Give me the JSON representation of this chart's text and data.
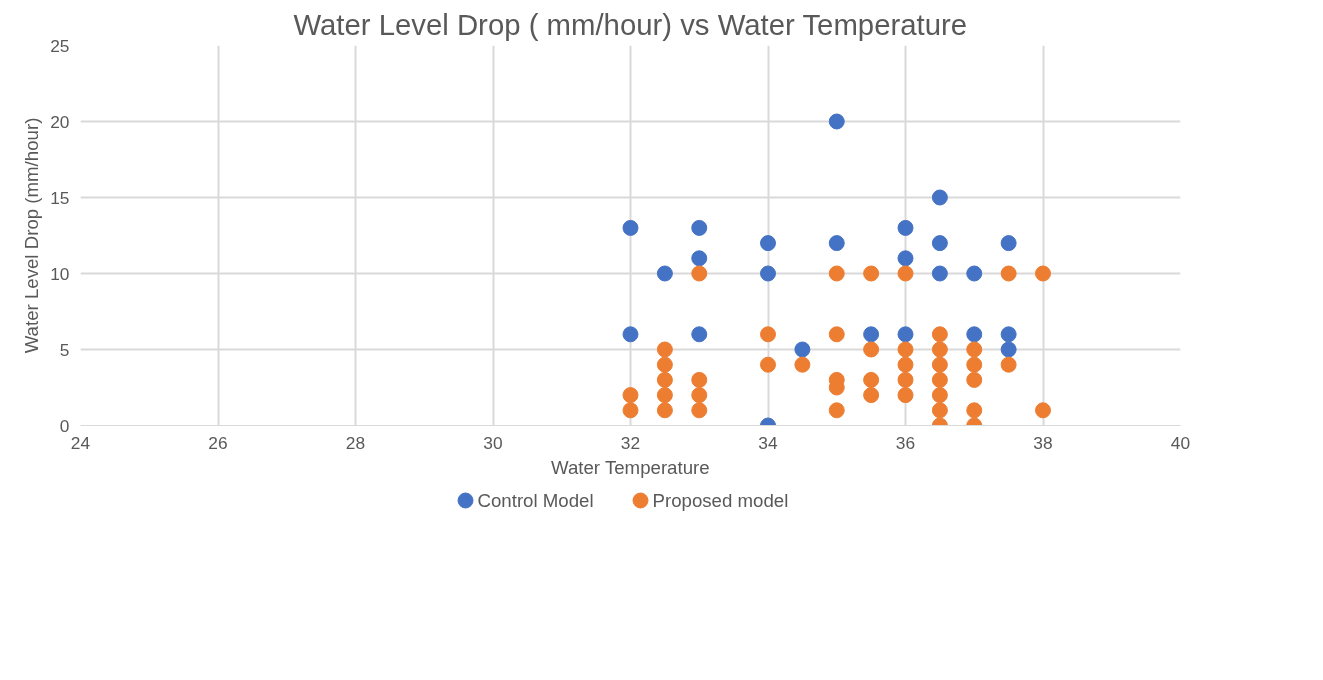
{
  "chart_data": {
    "type": "scatter",
    "title": "Water Level Drop ( mm/hour) vs Water Temperature",
    "xlabel": "Water Temperature",
    "ylabel": "Water Level Drop (mm/hour)",
    "xlim": [
      24,
      40
    ],
    "xticks": [
      24,
      26,
      28,
      30,
      32,
      34,
      36,
      38,
      40
    ],
    "ylim": [
      0,
      25
    ],
    "yticks": [
      0,
      5,
      10,
      15,
      20,
      25
    ],
    "grid": true,
    "legend": "bottom",
    "marker": "circle",
    "series": [
      {
        "name": "Control Model",
        "color": "#4472c4",
        "x": [
          32,
          32,
          32.5,
          33,
          33,
          33,
          34,
          34,
          34,
          34.5,
          35,
          35,
          35.5,
          36,
          36,
          36,
          36.5,
          36.5,
          36.5,
          37,
          37,
          37.5,
          37.5,
          37.5
        ],
        "values": [
          13,
          6,
          10,
          13,
          11,
          6,
          12,
          10,
          0,
          5,
          20,
          12,
          6,
          13,
          11,
          6,
          15,
          12,
          10,
          10,
          6,
          12,
          6,
          5
        ]
      },
      {
        "name": "Proposed model",
        "color": "#ed7d31",
        "x": [
          32,
          32,
          32.5,
          32.5,
          32.5,
          32.5,
          32.5,
          33,
          33,
          33,
          33,
          34,
          34,
          34.5,
          35,
          35,
          35,
          35,
          35,
          35.5,
          35.5,
          35.5,
          35.5,
          36,
          36,
          36,
          36,
          36,
          36.5,
          36.5,
          36.5,
          36.5,
          36.5,
          36.5,
          36.5,
          37,
          37,
          37,
          37,
          37,
          37.5,
          37.5,
          38,
          38
        ],
        "values": [
          2,
          1,
          5,
          4,
          3,
          2,
          1,
          10,
          3,
          2,
          1,
          6,
          4,
          4,
          10,
          6,
          3,
          2.5,
          1,
          10,
          5,
          3,
          2,
          10,
          5,
          4,
          3,
          2,
          6,
          5,
          4,
          3,
          2,
          1,
          0,
          5,
          4,
          3,
          1,
          0,
          10,
          4,
          10,
          1
        ]
      }
    ]
  }
}
